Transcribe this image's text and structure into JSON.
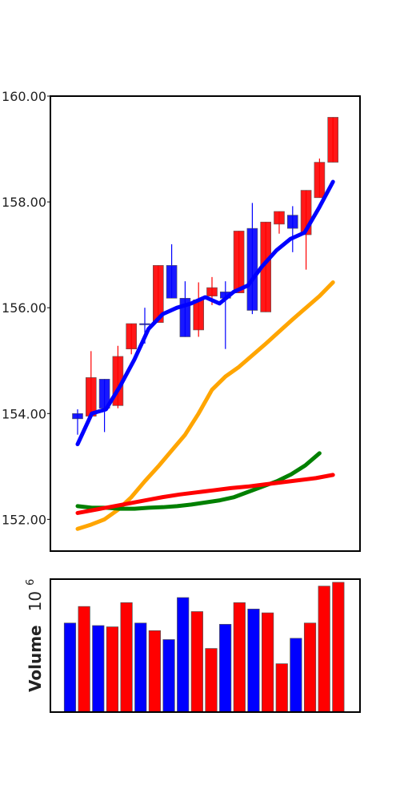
{
  "chart_data": [
    {
      "type": "candlestick",
      "panel": "price",
      "y_ticks": [
        "152.00",
        "154.00",
        "156.00",
        "158.00",
        "160.00"
      ],
      "ylim": [
        151.4,
        160.0
      ],
      "grid": false,
      "colors": {
        "up": "#ff0000",
        "down": "#0000ff"
      },
      "candles": [
        {
          "open": 154.0,
          "close": 153.9,
          "high": 154.08,
          "low": 153.6,
          "color": "#0000ff"
        },
        {
          "open": 153.95,
          "close": 154.68,
          "high": 155.18,
          "low": 153.9,
          "color": "#ff0000"
        },
        {
          "open": 154.65,
          "close": 154.1,
          "high": 154.65,
          "low": 153.65,
          "color": "#0000ff"
        },
        {
          "open": 154.15,
          "close": 155.08,
          "high": 155.28,
          "low": 154.1,
          "color": "#ff0000"
        },
        {
          "open": 155.22,
          "close": 155.7,
          "high": 155.7,
          "low": 155.12,
          "color": "#ff0000"
        },
        {
          "open": 155.7,
          "close": 155.68,
          "high": 156.0,
          "low": 155.32,
          "color": "#0000ff"
        },
        {
          "open": 155.72,
          "close": 156.8,
          "high": 156.8,
          "low": 155.72,
          "color": "#ff0000"
        },
        {
          "open": 156.8,
          "close": 156.18,
          "high": 157.2,
          "low": 156.18,
          "color": "#0000ff"
        },
        {
          "open": 156.18,
          "close": 155.45,
          "high": 156.5,
          "low": 155.45,
          "color": "#0000ff"
        },
        {
          "open": 155.58,
          "close": 156.15,
          "high": 156.48,
          "low": 155.45,
          "color": "#ff0000"
        },
        {
          "open": 156.22,
          "close": 156.38,
          "high": 156.58,
          "low": 156.05,
          "color": "#ff0000"
        },
        {
          "open": 156.3,
          "close": 156.18,
          "high": 156.5,
          "low": 155.22,
          "color": "#0000ff"
        },
        {
          "open": 156.28,
          "close": 157.45,
          "high": 157.45,
          "low": 156.28,
          "color": "#ff0000"
        },
        {
          "open": 157.5,
          "close": 155.95,
          "high": 157.98,
          "low": 155.88,
          "color": "#0000ff"
        },
        {
          "open": 155.92,
          "close": 157.62,
          "high": 157.62,
          "low": 155.92,
          "color": "#ff0000"
        },
        {
          "open": 157.58,
          "close": 157.82,
          "high": 157.82,
          "low": 157.4,
          "color": "#ff0000"
        },
        {
          "open": 157.75,
          "close": 157.5,
          "high": 157.92,
          "low": 157.05,
          "color": "#0000ff"
        },
        {
          "open": 157.38,
          "close": 158.22,
          "high": 158.22,
          "low": 156.72,
          "color": "#ff0000"
        },
        {
          "open": 158.08,
          "close": 158.75,
          "high": 158.82,
          "low": 158.08,
          "color": "#ff0000"
        },
        {
          "open": 158.75,
          "close": 159.6,
          "high": 159.6,
          "low": 158.75,
          "color": "#ff0000"
        }
      ],
      "series": [
        {
          "color": "#0000ff",
          "values": [
            153.42,
            154.0,
            154.08,
            154.52,
            155.02,
            155.6,
            155.88,
            156.0,
            156.08,
            156.2,
            156.08,
            156.3,
            156.42,
            156.78,
            157.08,
            157.3,
            157.42,
            157.88,
            158.38
          ]
        },
        {
          "color": "#ffa500",
          "values": [
            151.82,
            151.9,
            152.0,
            152.18,
            152.42,
            152.72,
            153.0,
            153.3,
            153.6,
            154.0,
            154.45,
            154.7,
            154.88,
            155.1,
            155.32,
            155.55,
            155.78,
            156.0,
            156.22,
            156.48
          ]
        },
        {
          "color": "#008000",
          "values": [
            152.25,
            152.22,
            152.22,
            152.2,
            152.2,
            152.22,
            152.23,
            152.25,
            152.28,
            152.32,
            152.36,
            152.42,
            152.52,
            152.62,
            152.72,
            152.85,
            153.02,
            153.25
          ]
        },
        {
          "color": "#ff0000",
          "values": [
            152.12,
            152.18,
            152.24,
            152.3,
            152.36,
            152.42,
            152.47,
            152.51,
            152.55,
            152.59,
            152.62,
            152.66,
            152.7,
            152.74,
            152.78,
            152.84
          ]
        }
      ]
    },
    {
      "type": "bar",
      "panel": "volume",
      "ylabel": "Volume",
      "ylabel_exp": "6",
      "ylim": [
        0,
        1.0
      ],
      "colors": {
        "up": "#ff0000",
        "down": "#0000ff"
      },
      "bars": [
        {
          "value": 0.7,
          "color": "#0000ff"
        },
        {
          "value": 0.83,
          "color": "#ff0000"
        },
        {
          "value": 0.68,
          "color": "#0000ff"
        },
        {
          "value": 0.67,
          "color": "#ff0000"
        },
        {
          "value": 0.86,
          "color": "#ff0000"
        },
        {
          "value": 0.7,
          "color": "#0000ff"
        },
        {
          "value": 0.64,
          "color": "#ff0000"
        },
        {
          "value": 0.57,
          "color": "#0000ff"
        },
        {
          "value": 0.9,
          "color": "#0000ff"
        },
        {
          "value": 0.79,
          "color": "#ff0000"
        },
        {
          "value": 0.5,
          "color": "#ff0000"
        },
        {
          "value": 0.69,
          "color": "#0000ff"
        },
        {
          "value": 0.86,
          "color": "#ff0000"
        },
        {
          "value": 0.81,
          "color": "#0000ff"
        },
        {
          "value": 0.78,
          "color": "#ff0000"
        },
        {
          "value": 0.38,
          "color": "#ff0000"
        },
        {
          "value": 0.58,
          "color": "#0000ff"
        },
        {
          "value": 0.7,
          "color": "#ff0000"
        },
        {
          "value": 0.99,
          "color": "#ff0000"
        },
        {
          "value": 1.02,
          "color": "#ff0000"
        }
      ]
    }
  ]
}
